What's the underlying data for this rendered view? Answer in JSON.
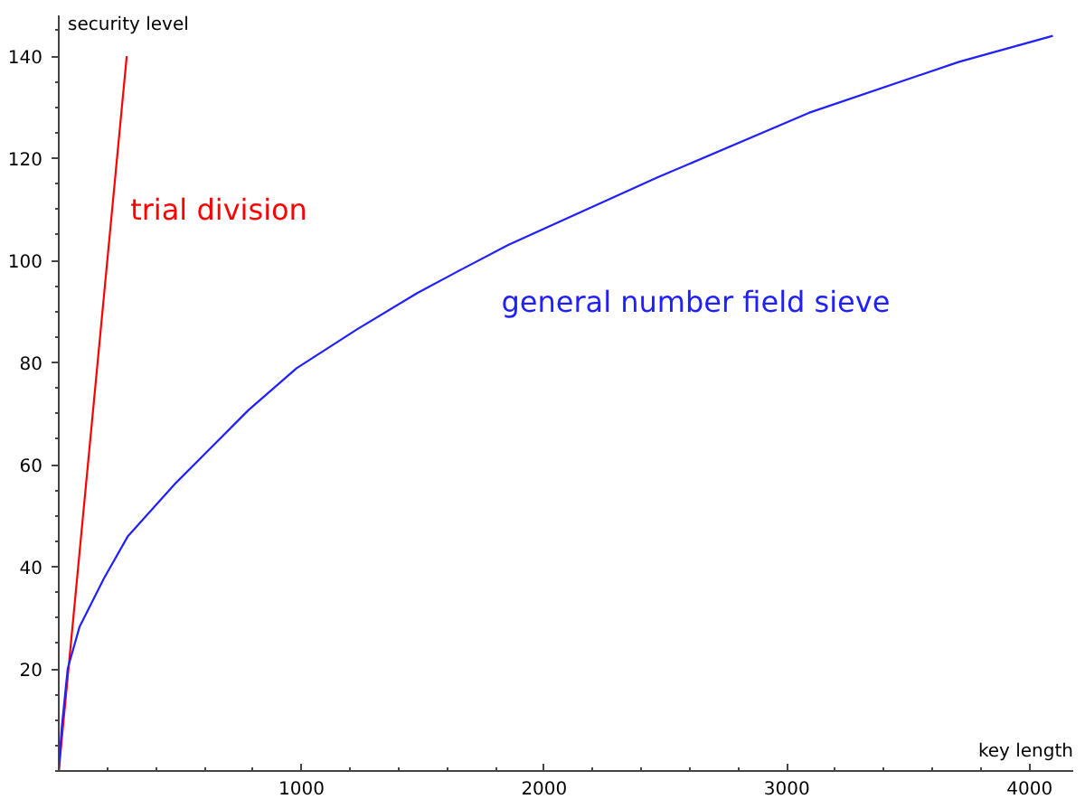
{
  "chart_data": {
    "type": "line",
    "xlabel": "key length",
    "ylabel": "security level",
    "xlim": [
      0,
      4180
    ],
    "ylim": [
      0,
      148
    ],
    "xticks": [
      1000,
      2000,
      3000,
      4000
    ],
    "yticks": [
      20,
      40,
      60,
      80,
      100,
      120,
      140
    ],
    "grid": false,
    "series": [
      {
        "name": "trial division",
        "color": "#ff0000",
        "x": [
          0,
          280
        ],
        "values": [
          0,
          140
        ]
      },
      {
        "name": "general number field sieve",
        "color": "#2020ff",
        "x": [
          0,
          12,
          37,
          86,
          186,
          285,
          484,
          608,
          782,
          980,
          1229,
          1477,
          1638,
          1850,
          2469,
          3090,
          3710,
          4096
        ],
        "values": [
          0,
          8.4,
          20.1,
          28.3,
          37.7,
          46,
          56.5,
          62.4,
          70.7,
          78.9,
          86.5,
          93.6,
          97.7,
          103,
          116.3,
          128.9,
          138.9,
          144
        ]
      }
    ]
  }
}
